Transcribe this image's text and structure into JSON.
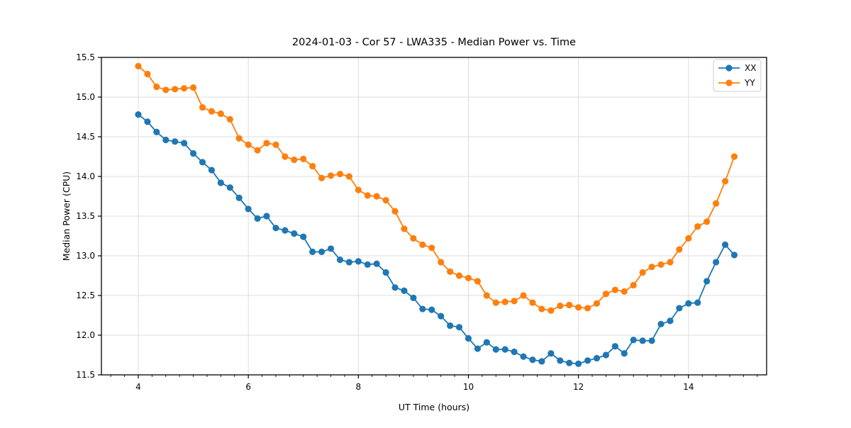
{
  "chart_data": {
    "type": "line",
    "title": "2024-01-03 - Cor 57 - LWA335 - Median Power vs. Time",
    "xlabel": "UT Time (hours)",
    "ylabel": "Median Power (CPU)",
    "xlim": [
      3.33,
      15.42
    ],
    "ylim": [
      11.5,
      15.5
    ],
    "xticks": [
      4,
      6,
      8,
      10,
      12,
      14
    ],
    "xtick_labels": [
      "4",
      "6",
      "8",
      "10",
      "12",
      "14"
    ],
    "minor_xtick_step": 0.25,
    "yticks": [
      11.5,
      12.0,
      12.5,
      13.0,
      13.5,
      14.0,
      14.5,
      15.0,
      15.5
    ],
    "ytick_labels": [
      "11.5",
      "12.0",
      "12.5",
      "13.0",
      "13.5",
      "14.0",
      "14.5",
      "15.0",
      "15.5"
    ],
    "grid": true,
    "legend_position": "upper-right",
    "marker": "circle",
    "x": [
      4.0,
      4.167,
      4.333,
      4.5,
      4.667,
      4.833,
      5.0,
      5.167,
      5.333,
      5.5,
      5.667,
      5.833,
      6.0,
      6.167,
      6.333,
      6.5,
      6.667,
      6.833,
      7.0,
      7.167,
      7.333,
      7.5,
      7.667,
      7.833,
      8.0,
      8.167,
      8.333,
      8.5,
      8.667,
      8.833,
      9.0,
      9.167,
      9.333,
      9.5,
      9.667,
      9.833,
      10.0,
      10.167,
      10.333,
      10.5,
      10.667,
      10.833,
      11.0,
      11.167,
      11.333,
      11.5,
      11.667,
      11.833,
      12.0,
      12.167,
      12.333,
      12.5,
      12.667,
      12.833,
      13.0,
      13.167,
      13.333,
      13.5,
      13.667,
      13.833,
      14.0,
      14.167,
      14.333,
      14.5,
      14.667,
      14.833
    ],
    "series": [
      {
        "name": "XX",
        "color": "#1f77b4",
        "values": [
          14.78,
          14.69,
          14.56,
          14.46,
          14.44,
          14.42,
          14.29,
          14.18,
          14.08,
          13.92,
          13.86,
          13.73,
          13.59,
          13.47,
          13.5,
          13.35,
          13.32,
          13.28,
          13.24,
          13.05,
          13.05,
          13.09,
          12.95,
          12.92,
          12.93,
          12.89,
          12.9,
          12.79,
          12.6,
          12.56,
          12.47,
          12.33,
          12.32,
          12.24,
          12.12,
          12.1,
          11.96,
          11.83,
          11.91,
          11.82,
          11.82,
          11.79,
          11.73,
          11.69,
          11.67,
          11.77,
          11.68,
          11.65,
          11.64,
          11.68,
          11.71,
          11.75,
          11.86,
          11.77,
          11.94,
          11.93,
          11.93,
          12.14,
          12.18,
          12.34,
          12.4,
          12.41,
          12.68,
          12.92,
          13.14,
          13.01
        ]
      },
      {
        "name": "YY",
        "color": "#ff7f0e",
        "values": [
          15.39,
          15.29,
          15.13,
          15.09,
          15.1,
          15.11,
          15.12,
          14.87,
          14.82,
          14.79,
          14.72,
          14.48,
          14.4,
          14.33,
          14.42,
          14.4,
          14.25,
          14.21,
          14.22,
          14.13,
          13.98,
          14.01,
          14.03,
          14.0,
          13.83,
          13.76,
          13.75,
          13.7,
          13.56,
          13.34,
          13.22,
          13.14,
          13.1,
          12.92,
          12.8,
          12.75,
          12.72,
          12.68,
          12.5,
          12.41,
          12.42,
          12.43,
          12.5,
          12.41,
          12.33,
          12.31,
          12.37,
          12.38,
          12.35,
          12.34,
          12.4,
          12.52,
          12.57,
          12.55,
          12.63,
          12.79,
          12.86,
          12.89,
          12.92,
          13.08,
          13.22,
          13.37,
          13.43,
          13.66,
          13.94,
          14.25
        ]
      }
    ],
    "style": {
      "grid_color": "#dcdcdc",
      "spine_color": "#000000",
      "background": "#ffffff",
      "legend_border": "#cccccc"
    }
  }
}
